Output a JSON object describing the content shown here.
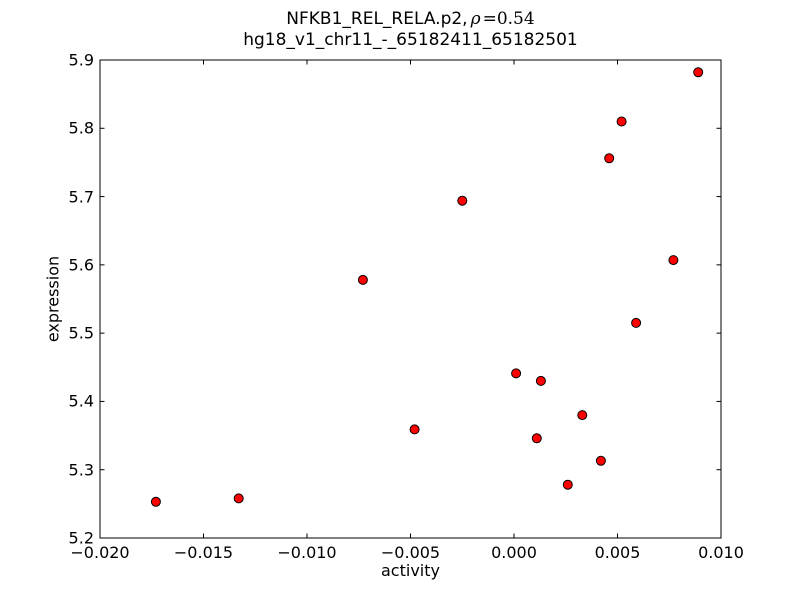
{
  "figure": {
    "title_prefix": "NFKB1_REL_RELA.p2,",
    "title_rho": "ρ",
    "title_eq": "=0.54",
    "title_line2": "hg18_v1_chr11_-_65182411_65182501"
  },
  "chart_data": {
    "type": "scatter",
    "title": "NFKB1_REL_RELA.p2, ρ=0.54",
    "subtitle": "hg18_v1_chr11_-_65182411_65182501",
    "xlabel": "activity",
    "ylabel": "expression",
    "xlim": [
      -0.02,
      0.01
    ],
    "ylim": [
      5.2,
      5.9
    ],
    "xticks": [
      -0.02,
      -0.015,
      -0.01,
      -0.005,
      0.0,
      0.005,
      0.01
    ],
    "xtick_labels": [
      "−0.020",
      "−0.015",
      "−0.010",
      "−0.005",
      "0.000",
      "0.005",
      "0.010"
    ],
    "yticks": [
      5.2,
      5.3,
      5.4,
      5.5,
      5.6,
      5.7,
      5.8,
      5.9
    ],
    "ytick_labels": [
      "5.2",
      "5.3",
      "5.4",
      "5.5",
      "5.6",
      "5.7",
      "5.8",
      "5.9"
    ],
    "grid": false,
    "legend": null,
    "marker": {
      "shape": "circle",
      "fill_color": "#ff0000",
      "edge_color": "#000000",
      "radius": 4.5
    },
    "frame_color": "#000000",
    "points": [
      [
        -0.0173,
        5.253
      ],
      [
        -0.0133,
        5.258
      ],
      [
        -0.0073,
        5.578
      ],
      [
        -0.0048,
        5.359
      ],
      [
        -0.0025,
        5.694
      ],
      [
        0.0001,
        5.441
      ],
      [
        0.0011,
        5.346
      ],
      [
        0.0013,
        5.43
      ],
      [
        0.0026,
        5.278
      ],
      [
        0.0033,
        5.38
      ],
      [
        0.0042,
        5.313
      ],
      [
        0.0046,
        5.756
      ],
      [
        0.0052,
        5.81
      ],
      [
        0.0059,
        5.515
      ],
      [
        0.0077,
        5.607
      ],
      [
        0.0089,
        5.882
      ]
    ]
  }
}
